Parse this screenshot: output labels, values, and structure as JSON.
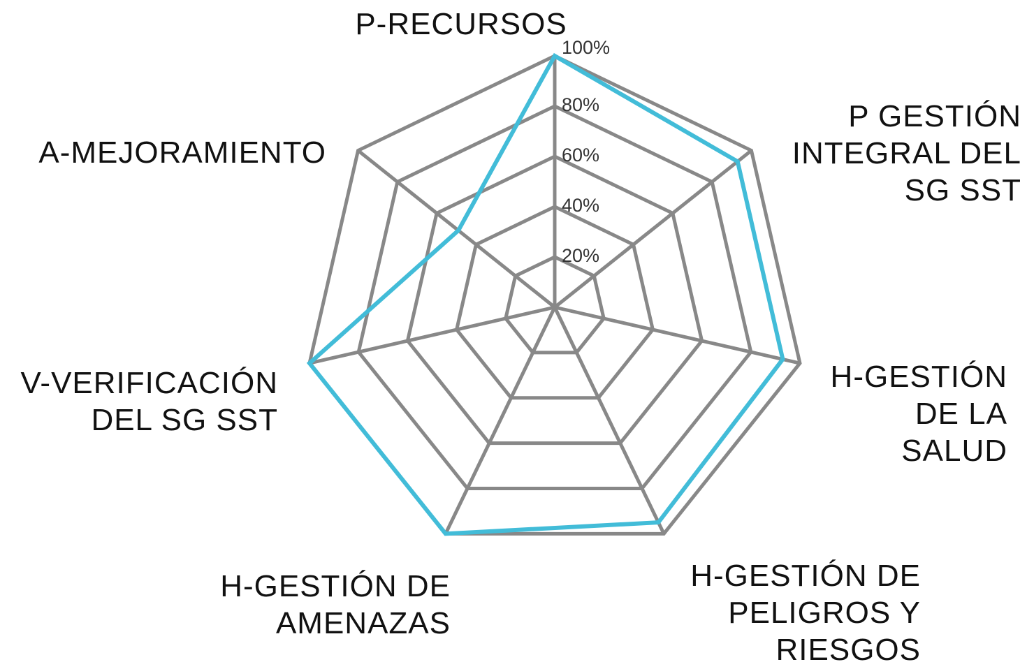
{
  "chart_data": {
    "type": "radar",
    "categories": [
      "P-RECURSOS",
      "P GESTIÓN\nINTEGRAL DEL\nSG SST",
      "H-GESTIÓN\nDE LA\nSALUD",
      "H-GESTIÓN DE\nPELIGROS Y\nRIESGOS",
      "H-GESTIÓN DE\nAMENAZAS",
      "V-VERIFICACIÓN\nDEL SG SST",
      "A-MEJORAMIENTO"
    ],
    "values": [
      100,
      93,
      93,
      95,
      100,
      100,
      49
    ],
    "color": "#42bcd8",
    "rlim": [
      0,
      100
    ],
    "rticks": [
      {
        "value": 20,
        "label": "20%"
      },
      {
        "value": 40,
        "label": "40%"
      },
      {
        "value": 60,
        "label": "60%"
      },
      {
        "value": 80,
        "label": "80%"
      },
      {
        "value": 100,
        "label": "100%"
      }
    ],
    "grid": true,
    "grid_color": "#888888"
  }
}
